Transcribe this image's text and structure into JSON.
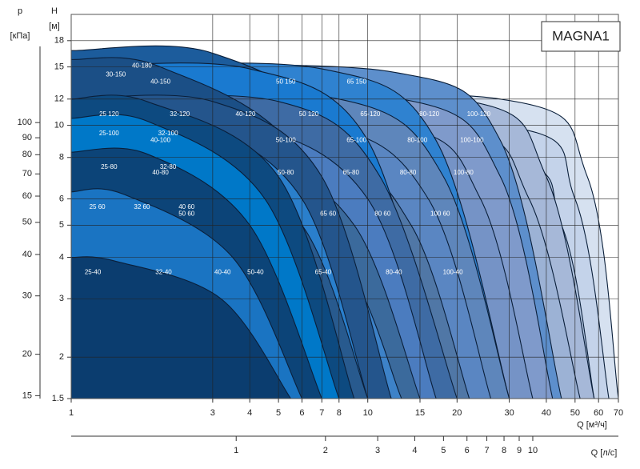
{
  "chart_data": {
    "type": "pump-curves",
    "title": "MAGNA1",
    "x_label": "Q [м³/ч]",
    "x2_label": "Q [л/с]",
    "y_label": "H",
    "y_unit": "[м]",
    "y2_label": "p",
    "y2_unit": "[кПа]",
    "log_x": true,
    "log_y": true,
    "xlim": [
      1,
      70
    ],
    "xticks": [
      1,
      3,
      4,
      5,
      6,
      7,
      8,
      10,
      15,
      20,
      30,
      40,
      50,
      60,
      70
    ],
    "x2lim": [
      0.2778,
      19.44
    ],
    "x2ticks": [
      1,
      2,
      3,
      4,
      5,
      6,
      7,
      8,
      9,
      10
    ],
    "ylim": [
      1.5,
      21.6
    ],
    "yticks": [
      1.5,
      2,
      3,
      4,
      5,
      6,
      8,
      10,
      12,
      15,
      18
    ],
    "y2lim": [
      14.7,
      212
    ],
    "y2ticks": [
      15,
      20,
      30,
      40,
      50,
      60,
      70,
      80,
      90,
      100
    ],
    "series": [
      {
        "name": "100-120",
        "color": "#d6e1f0",
        "x": [
          1,
          28,
          55,
          70
        ],
        "y": [
          12,
          12,
          7,
          1.5
        ]
      },
      {
        "name": "100-100",
        "color": "#c4d3ea",
        "x": [
          1,
          28,
          50,
          65
        ],
        "y": [
          10,
          10,
          6,
          1.5
        ]
      },
      {
        "name": "100-80",
        "color": "#b3c6e2",
        "x": [
          1,
          26,
          45,
          58
        ],
        "y": [
          8,
          8,
          5,
          1.5
        ]
      },
      {
        "name": "100 60",
        "color": "#a9bede",
        "x": [
          1,
          22,
          38,
          50
        ],
        "y": [
          6,
          6,
          4,
          1.5
        ]
      },
      {
        "name": "100-40",
        "color": "#9fb5d6",
        "x": [
          1,
          25,
          35,
          40
        ],
        "y": [
          4,
          3.9,
          2.8,
          1.5
        ]
      },
      {
        "name": "80-120",
        "color": "#a6b8d8",
        "x": [
          1,
          20,
          40,
          58
        ],
        "y": [
          12,
          12,
          7,
          1.5
        ]
      },
      {
        "name": "80-100",
        "color": "#9cb2d5",
        "x": [
          1,
          18,
          35,
          52
        ],
        "y": [
          10,
          10,
          6,
          1.5
        ]
      },
      {
        "name": "80-80",
        "color": "#8ea8cf",
        "x": [
          1,
          17,
          30,
          45
        ],
        "y": [
          8,
          8,
          5,
          1.5
        ]
      },
      {
        "name": "80 60",
        "color": "#86a2cc",
        "x": [
          1,
          14,
          26,
          40
        ],
        "y": [
          6,
          6,
          4,
          1.5
        ]
      },
      {
        "name": "80-40",
        "color": "#7b9bc4",
        "x": [
          1,
          15,
          25,
          33
        ],
        "y": [
          4,
          3.95,
          2.7,
          1.5
        ]
      },
      {
        "name": "65 150",
        "color": "#5d8fcc",
        "x": [
          1,
          12,
          28,
          45
        ],
        "y": [
          15,
          14.5,
          9,
          1.5
        ]
      },
      {
        "name": "65-120",
        "color": "#7f9acb",
        "x": [
          1,
          13,
          28,
          42
        ],
        "y": [
          12,
          12,
          7,
          1.5
        ]
      },
      {
        "name": "65-100",
        "color": "#7593c6",
        "x": [
          1,
          12,
          24,
          36
        ],
        "y": [
          10,
          10,
          6,
          1.5
        ]
      },
      {
        "name": "65-80",
        "color": "#6b8cb8",
        "x": [
          1,
          11,
          20,
          30
        ],
        "y": [
          8,
          8,
          5,
          1.5
        ]
      },
      {
        "name": "65 60",
        "color": "#7592c4",
        "x": [
          1,
          9,
          18,
          28
        ],
        "y": [
          6,
          6,
          4,
          1.5
        ]
      },
      {
        "name": "65-40",
        "color": "#5b83af",
        "x": [
          1,
          10,
          16,
          24
        ],
        "y": [
          4,
          3.9,
          2.7,
          1.5
        ]
      },
      {
        "name": "50 150",
        "color": "#2f82d0",
        "x": [
          1,
          7,
          17,
          30
        ],
        "y": [
          15,
          14.8,
          9,
          1.5
        ]
      },
      {
        "name": "50 120",
        "color": "#5e86bb",
        "x": [
          1,
          8,
          18,
          30
        ],
        "y": [
          12,
          12,
          7,
          1.5
        ]
      },
      {
        "name": "50-100",
        "color": "#5a86c2",
        "x": [
          1,
          7,
          16,
          26
        ],
        "y": [
          10,
          10,
          6,
          1.5
        ]
      },
      {
        "name": "50-80",
        "color": "#5077a6",
        "x": [
          1,
          7,
          14,
          22
        ],
        "y": [
          8,
          8,
          5,
          1.5
        ]
      },
      {
        "name": "50 60",
        "color": "#6a90c6",
        "x": [
          1,
          6,
          12,
          18
        ],
        "y": [
          6,
          6,
          4,
          1.5
        ]
      },
      {
        "name": "50-40",
        "color": "#46719f",
        "x": [
          1,
          5,
          10,
          16
        ],
        "y": [
          4,
          3.9,
          2.8,
          1.5
        ]
      },
      {
        "name": "40-180",
        "color": "#1c5c9c",
        "x": [
          1,
          3,
          8,
          16
        ],
        "y": [
          16.8,
          16.5,
          9,
          1.5
        ]
      },
      {
        "name": "40-150",
        "color": "#1a7ad0",
        "x": [
          1,
          4,
          10,
          18
        ],
        "y": [
          15,
          14.8,
          9,
          1.5
        ]
      },
      {
        "name": "40-120",
        "color": "#3e6ba4",
        "x": [
          1,
          5,
          11,
          20
        ],
        "y": [
          12,
          11.8,
          7,
          1.5
        ]
      },
      {
        "name": "40-100",
        "color": "#4b7cbf",
        "x": [
          1,
          4,
          10,
          17
        ],
        "y": [
          10,
          9.9,
          6,
          1.5
        ]
      },
      {
        "name": "40-80",
        "color": "#3b6a9c",
        "x": [
          1,
          4,
          9,
          15
        ],
        "y": [
          8,
          7.9,
          5,
          1.5
        ]
      },
      {
        "name": "40 60",
        "color": "#3d82c8",
        "x": [
          1,
          3,
          8,
          13
        ],
        "y": [
          6.3,
          6.1,
          4,
          1.5
        ]
      },
      {
        "name": "40-40",
        "color": "#305f92",
        "x": [
          1,
          3.5,
          6.5,
          10
        ],
        "y": [
          4,
          3.9,
          2.8,
          1.5
        ]
      },
      {
        "name": "30-150",
        "color": "#1b4f86",
        "x": [
          1,
          2,
          6,
          12
        ],
        "y": [
          15.8,
          15,
          8,
          1.5
        ]
      },
      {
        "name": "32-120",
        "color": "#24558c",
        "x": [
          1,
          3,
          7,
          12
        ],
        "y": [
          12,
          11.8,
          7,
          1.5
        ]
      },
      {
        "name": "32-100",
        "color": "#2a7fcc",
        "x": [
          1,
          2.5,
          6,
          10
        ],
        "y": [
          10.5,
          10.3,
          6,
          1.5
        ]
      },
      {
        "name": "32-80",
        "color": "#285a8e",
        "x": [
          1,
          2.5,
          6,
          10
        ],
        "y": [
          8.3,
          8.2,
          5,
          1.5
        ]
      },
      {
        "name": "32 60",
        "color": "#2a7cc4",
        "x": [
          1,
          2,
          5,
          8
        ],
        "y": [
          6.3,
          6.1,
          4,
          1.5
        ]
      },
      {
        "name": "32-40",
        "color": "#1d4f82",
        "x": [
          1,
          3,
          5,
          7
        ],
        "y": [
          4,
          3.9,
          2.9,
          1.5
        ]
      },
      {
        "name": "25 120",
        "color": "#0d4a80",
        "x": [
          1,
          1.8,
          5,
          9
        ],
        "y": [
          12,
          11.8,
          7,
          1.5
        ]
      },
      {
        "name": "25-100",
        "color": "#0078c8",
        "x": [
          1,
          1.8,
          4.5,
          8
        ],
        "y": [
          10.5,
          10.3,
          6,
          1.5
        ]
      },
      {
        "name": "25-80",
        "color": "#0c4478",
        "x": [
          1,
          1.8,
          4,
          7
        ],
        "y": [
          8.3,
          8.2,
          5,
          1.5
        ]
      },
      {
        "name": "25 60",
        "color": "#1a74c2",
        "x": [
          1,
          1.5,
          3.5,
          6
        ],
        "y": [
          6.3,
          6.2,
          4,
          1.5
        ]
      },
      {
        "name": "25-40",
        "color": "#0b3d6f",
        "x": [
          1,
          1.4,
          3.2,
          5.5
        ],
        "y": [
          4,
          3.9,
          3,
          1.5
        ]
      }
    ]
  }
}
